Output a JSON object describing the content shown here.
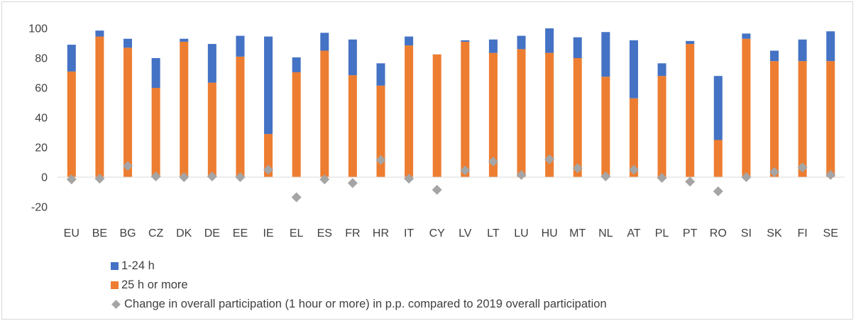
{
  "chart_data": {
    "type": "bar",
    "stacked": true,
    "categories": [
      "EU",
      "BE",
      "BG",
      "CZ",
      "DK",
      "DE",
      "EE",
      "IE",
      "EL",
      "ES",
      "FR",
      "HR",
      "IT",
      "CY",
      "LV",
      "LT",
      "LU",
      "HU",
      "MT",
      "NL",
      "AT",
      "PL",
      "PT",
      "RO",
      "SI",
      "SK",
      "FI",
      "SE"
    ],
    "series": [
      {
        "name": "25 h or more",
        "kind": "bar",
        "color": "#ed7d31",
        "values": [
          71,
          94.5,
          87,
          60,
          91,
          63.5,
          81,
          29,
          70.5,
          85,
          68.5,
          61.5,
          88.5,
          82.5,
          91,
          83.5,
          86,
          83.5,
          80,
          67.5,
          53,
          68,
          89.5,
          25,
          93,
          78,
          78,
          78
        ]
      },
      {
        "name": "1-24 h",
        "kind": "bar",
        "color": "#4472c4",
        "values": [
          18,
          4,
          6,
          20,
          2,
          26,
          14,
          65.5,
          10,
          12,
          24,
          15,
          6,
          0,
          1,
          9,
          9,
          16.5,
          14,
          30,
          39,
          8.5,
          2,
          43,
          3.5,
          7,
          14.5,
          20
        ]
      },
      {
        "name": "Change in overall participation (1 hour or more) in p.p. compared to 2019 overall participation",
        "kind": "marker",
        "color": "#a5a5a5",
        "values": [
          -1.5,
          -1,
          7.5,
          0.5,
          0,
          0.5,
          0,
          5,
          -13.5,
          -1.5,
          -4,
          11.5,
          -1,
          -8.5,
          4.5,
          10.5,
          1.5,
          12,
          6,
          0.5,
          5,
          -0.5,
          -3,
          -9.5,
          0,
          3.5,
          6.5,
          1.5
        ]
      }
    ],
    "ylim": [
      -20,
      100
    ],
    "yticks": [
      -20,
      0,
      20,
      40,
      60,
      80,
      100
    ],
    "grid": false,
    "legend_position": "bottom-left",
    "legend": [
      {
        "label": "1-24 h",
        "color": "#4472c4",
        "symbol": "square"
      },
      {
        "label": "25 h or more",
        "color": "#ed7d31",
        "symbol": "square"
      },
      {
        "label": "Change in overall participation (1 hour or more) in p.p. compared to 2019 overall participation",
        "color": "#a5a5a5",
        "symbol": "diamond"
      }
    ]
  }
}
